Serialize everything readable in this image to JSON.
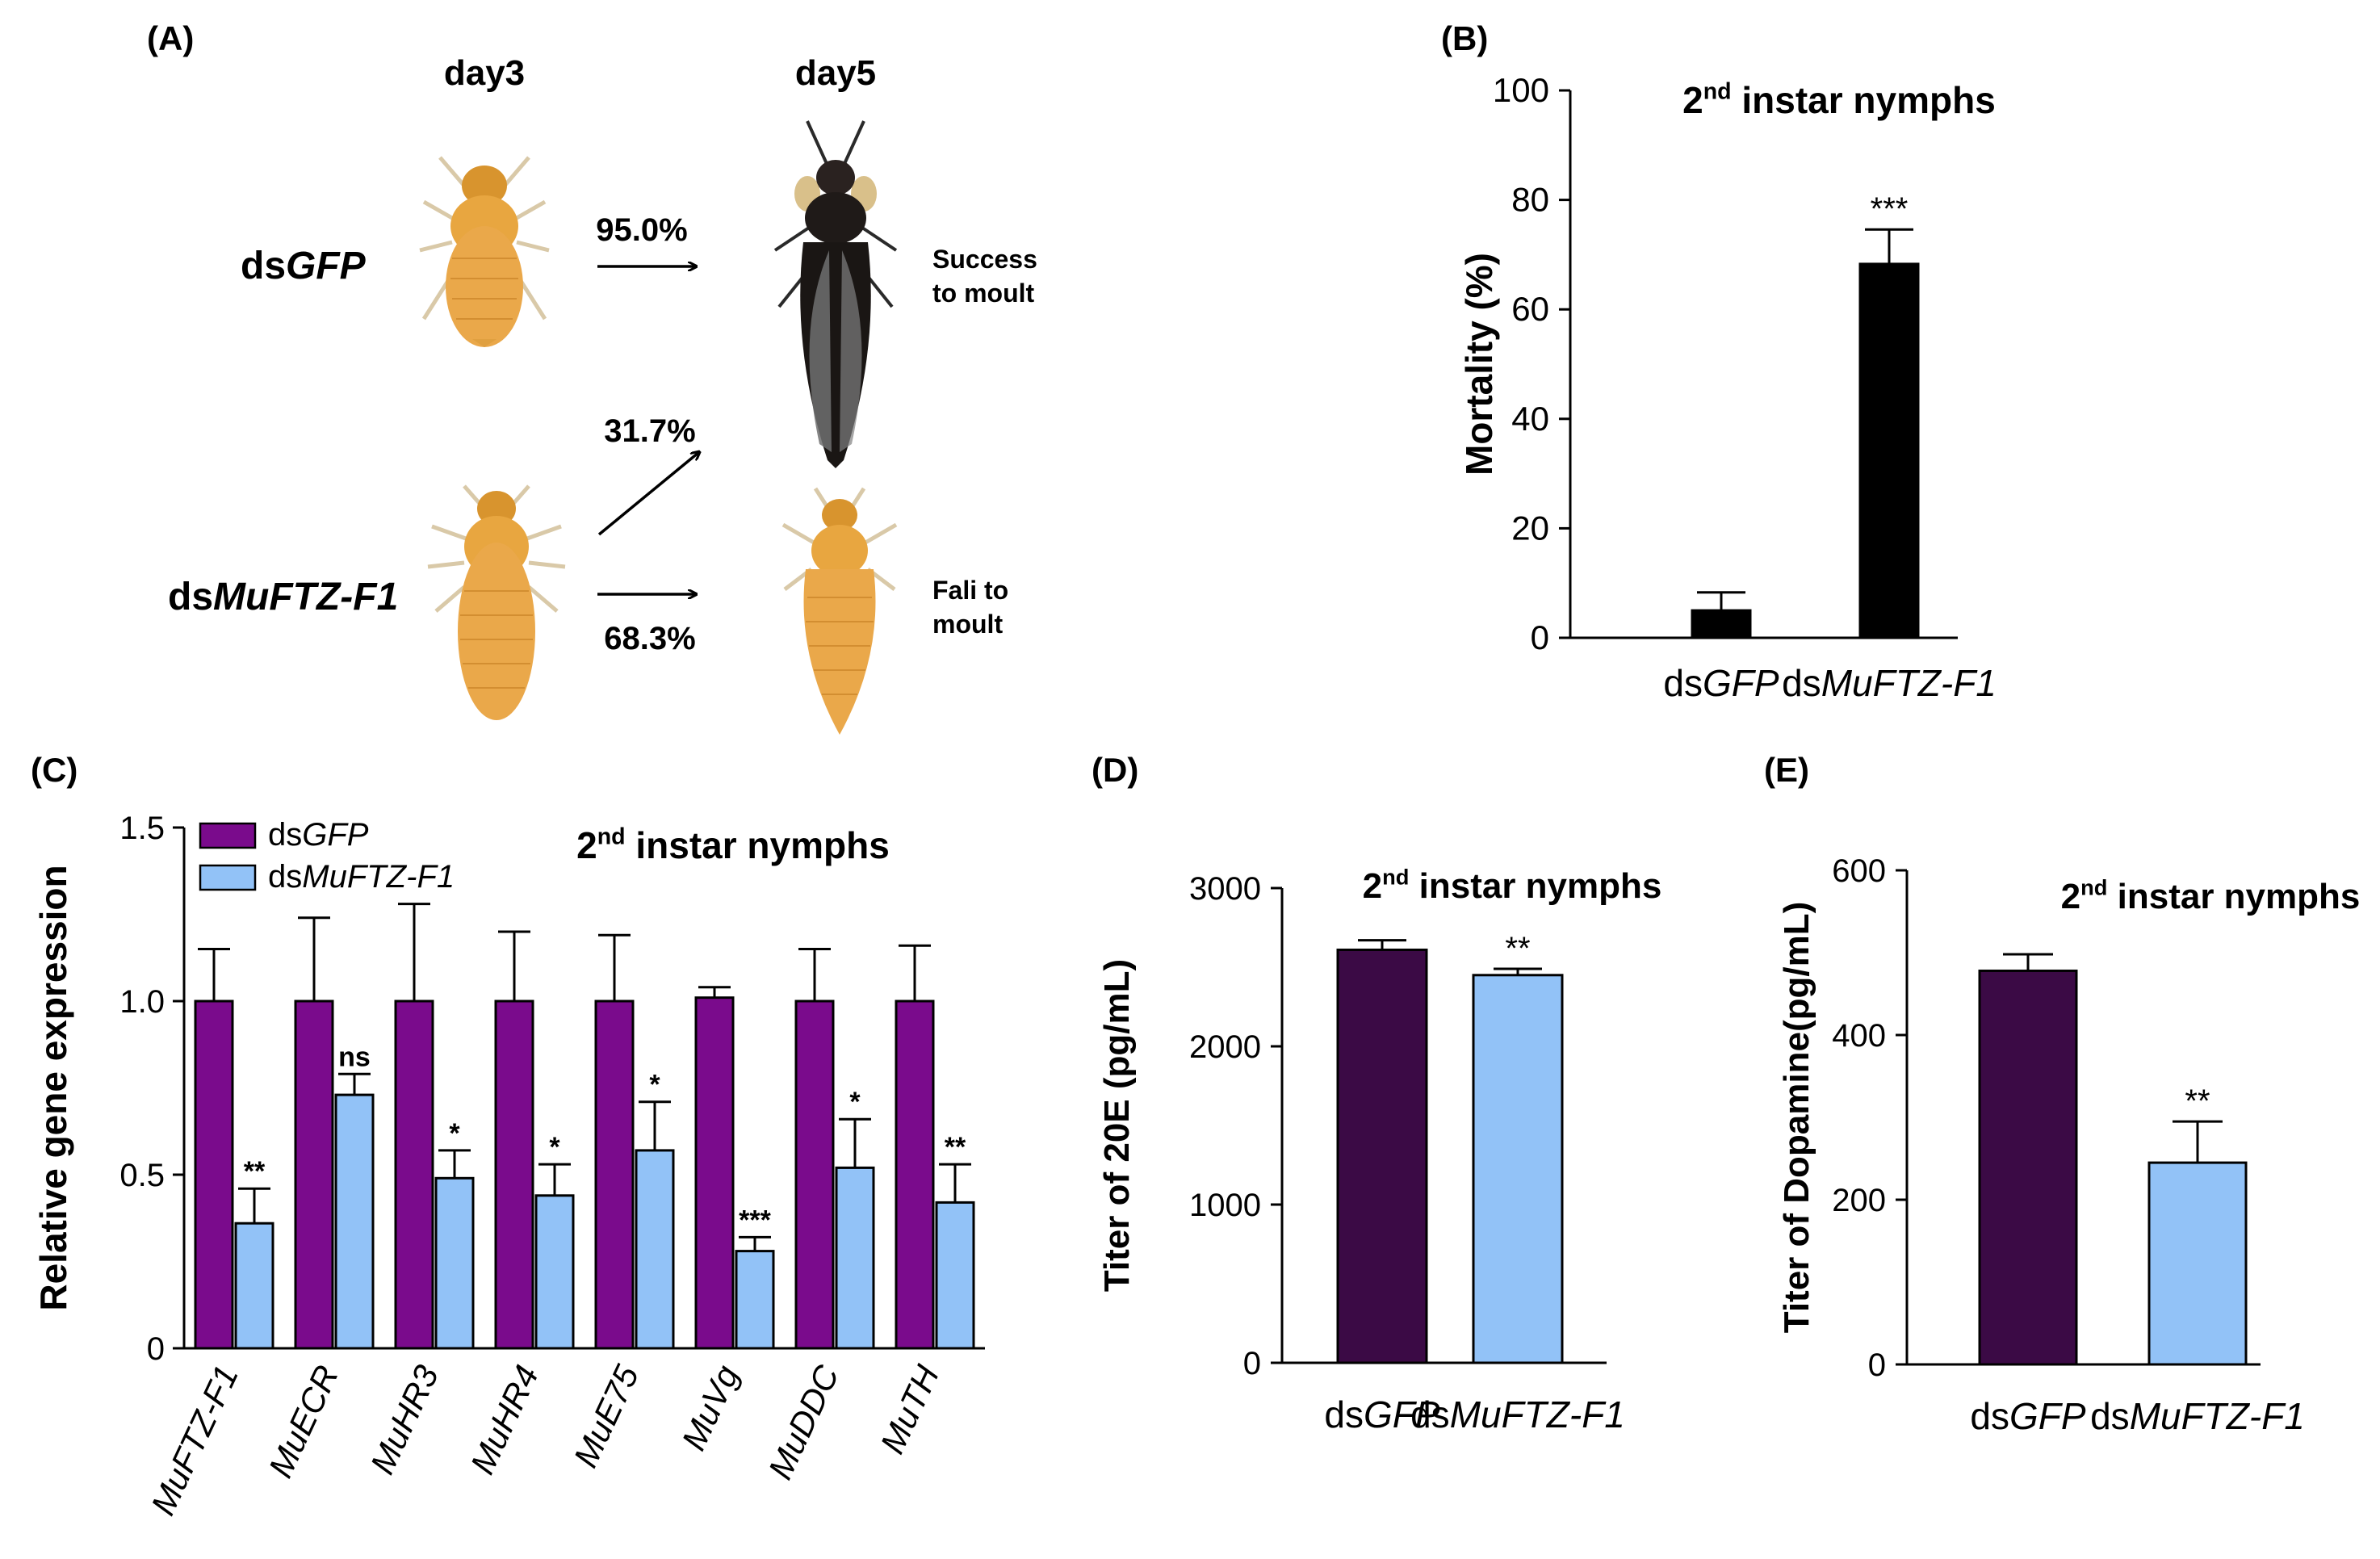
{
  "panelA": {
    "label": "(A)",
    "day3": "day3",
    "day5": "day5",
    "rows": [
      {
        "prefix": "ds",
        "name": "GFP",
        "pct_up": "95.0%",
        "outcome_line1": "Success",
        "outcome_line2": "to moult"
      },
      {
        "prefix": "ds",
        "name": "MuFTZ-F1",
        "pct_up": "31.7%",
        "pct_down": "68.3%",
        "outcome_line1": "Fali to",
        "outcome_line2": "moult"
      }
    ],
    "colors": {
      "nymph_body": "#e8a640",
      "nymph_dark": "#c57e22",
      "adult_body": "#1f1a18",
      "adult_wing": "#707070"
    }
  },
  "chart_data": [
    {
      "id": "B",
      "label": "(B)",
      "type": "bar",
      "title_main": "2",
      "title_sup": "nd",
      "title_rest": " instar nymphs",
      "ylabel": "Mortality (%)",
      "ylim": [
        0,
        100
      ],
      "yticks": [
        0,
        20,
        40,
        60,
        80,
        100
      ],
      "categories": [
        {
          "prefix": "ds",
          "name": "GFP"
        },
        {
          "prefix": "ds",
          "name": "MuFTZ-F1"
        }
      ],
      "values": [
        5.0,
        68.3
      ],
      "errors": [
        3.3,
        6.3
      ],
      "significance": [
        "",
        "***"
      ],
      "colors": [
        "#000000",
        "#000000"
      ]
    },
    {
      "id": "C",
      "label": "(C)",
      "type": "bar",
      "title_main": "2",
      "title_sup": "nd",
      "title_rest": " instar nymphs",
      "ylabel": "Relative gene expression",
      "ylim": [
        0,
        1.5
      ],
      "yticks": [
        0,
        0.5,
        1.0,
        1.5
      ],
      "ytick_labels": [
        "0",
        "0.5",
        "1.0",
        "1.5"
      ],
      "categories": [
        "MuFTZ-F1",
        "MuECR",
        "MuHR3",
        "MuHR4",
        "MuE75",
        "MuVg",
        "MuDDC",
        "MuTH"
      ],
      "legend": [
        {
          "prefix": "ds",
          "name": "GFP"
        },
        {
          "prefix": "ds",
          "name": "MuFTZ-F1"
        }
      ],
      "legend_position": "top-left",
      "series": [
        {
          "name": "dsGFP",
          "color": "#7a0b8c",
          "values": [
            1.0,
            1.0,
            1.0,
            1.0,
            1.0,
            1.01,
            1.0,
            1.0
          ],
          "errors": [
            0.15,
            0.24,
            0.28,
            0.2,
            0.19,
            0.03,
            0.15,
            0.16
          ]
        },
        {
          "name": "dsMuFTZ-F1",
          "color": "#92c2f7",
          "values": [
            0.36,
            0.73,
            0.49,
            0.44,
            0.57,
            0.28,
            0.52,
            0.42
          ],
          "errors": [
            0.1,
            0.06,
            0.08,
            0.09,
            0.14,
            0.04,
            0.14,
            0.11
          ]
        }
      ],
      "significance": [
        "**",
        "ns",
        "*",
        "*",
        "*",
        "***",
        "*",
        "**"
      ]
    },
    {
      "id": "D",
      "label": "(D)",
      "type": "bar",
      "title_main": "2",
      "title_sup": "nd",
      "title_rest": " instar nymphs",
      "ylabel": "Titer of 20E (pg/mL)",
      "ylim": [
        0,
        3000
      ],
      "yticks": [
        0,
        1000,
        2000,
        3000
      ],
      "categories": [
        {
          "prefix": "ds",
          "name": "GFP"
        },
        {
          "prefix": "ds",
          "name": "MuFTZ-F1"
        }
      ],
      "values": [
        2610,
        2450
      ],
      "errors": [
        60,
        40
      ],
      "significance": [
        "",
        "**"
      ],
      "colors": [
        "#3b0a45",
        "#92c2f7"
      ]
    },
    {
      "id": "E",
      "label": "(E)",
      "type": "bar",
      "title_main": "2",
      "title_sup": "nd",
      "title_rest": " instar nymphs",
      "ylabel": "Titer of Dopamine(pg/mL)",
      "ylim": [
        0,
        600
      ],
      "yticks": [
        0,
        200,
        400,
        600
      ],
      "categories": [
        {
          "prefix": "ds",
          "name": "GFP"
        },
        {
          "prefix": "ds",
          "name": "MuFTZ-F1"
        }
      ],
      "values": [
        478,
        245
      ],
      "errors": [
        20,
        50
      ],
      "significance": [
        "",
        "**"
      ],
      "colors": [
        "#3b0a45",
        "#92c2f7"
      ]
    }
  ]
}
